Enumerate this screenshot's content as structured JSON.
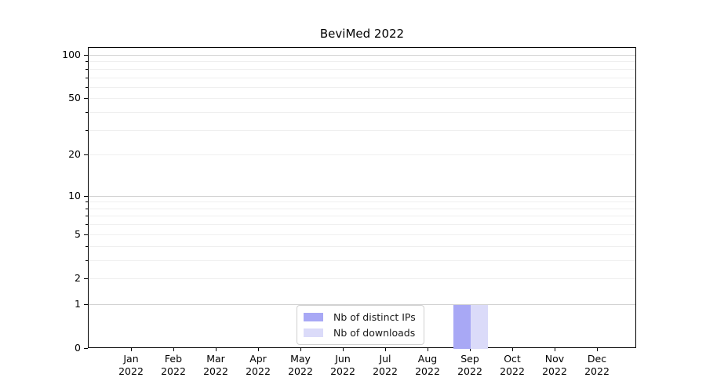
{
  "chart_data": {
    "type": "bar",
    "title": "BeviMed 2022",
    "x_tick_months": [
      "Jan",
      "Feb",
      "Mar",
      "Apr",
      "May",
      "Jun",
      "Jul",
      "Aug",
      "Sep",
      "Oct",
      "Nov",
      "Dec"
    ],
    "x_tick_year": "2022",
    "series": [
      {
        "name": "Nb of distinct IPs",
        "color": "#a8a8f5",
        "values": [
          0,
          0,
          0,
          0,
          0,
          0,
          0,
          0,
          1,
          0,
          0,
          0
        ]
      },
      {
        "name": "Nb of downloads",
        "color": "#dbdbf9",
        "values": [
          0,
          0,
          0,
          0,
          0,
          0,
          0,
          0,
          1,
          0,
          0,
          0
        ]
      }
    ],
    "y_scale": "log10(1+x)",
    "ylim": [
      0,
      113
    ],
    "y_labeled_ticks": [
      0,
      1,
      2,
      5,
      10,
      20,
      50,
      100
    ],
    "y_major_gridlines": [
      1,
      10,
      100
    ],
    "y_minor_gridlines": [
      3,
      4,
      6,
      7,
      8,
      9,
      30,
      40,
      60,
      70,
      80,
      90
    ],
    "grid": true,
    "legend_position": "lower center inside"
  }
}
